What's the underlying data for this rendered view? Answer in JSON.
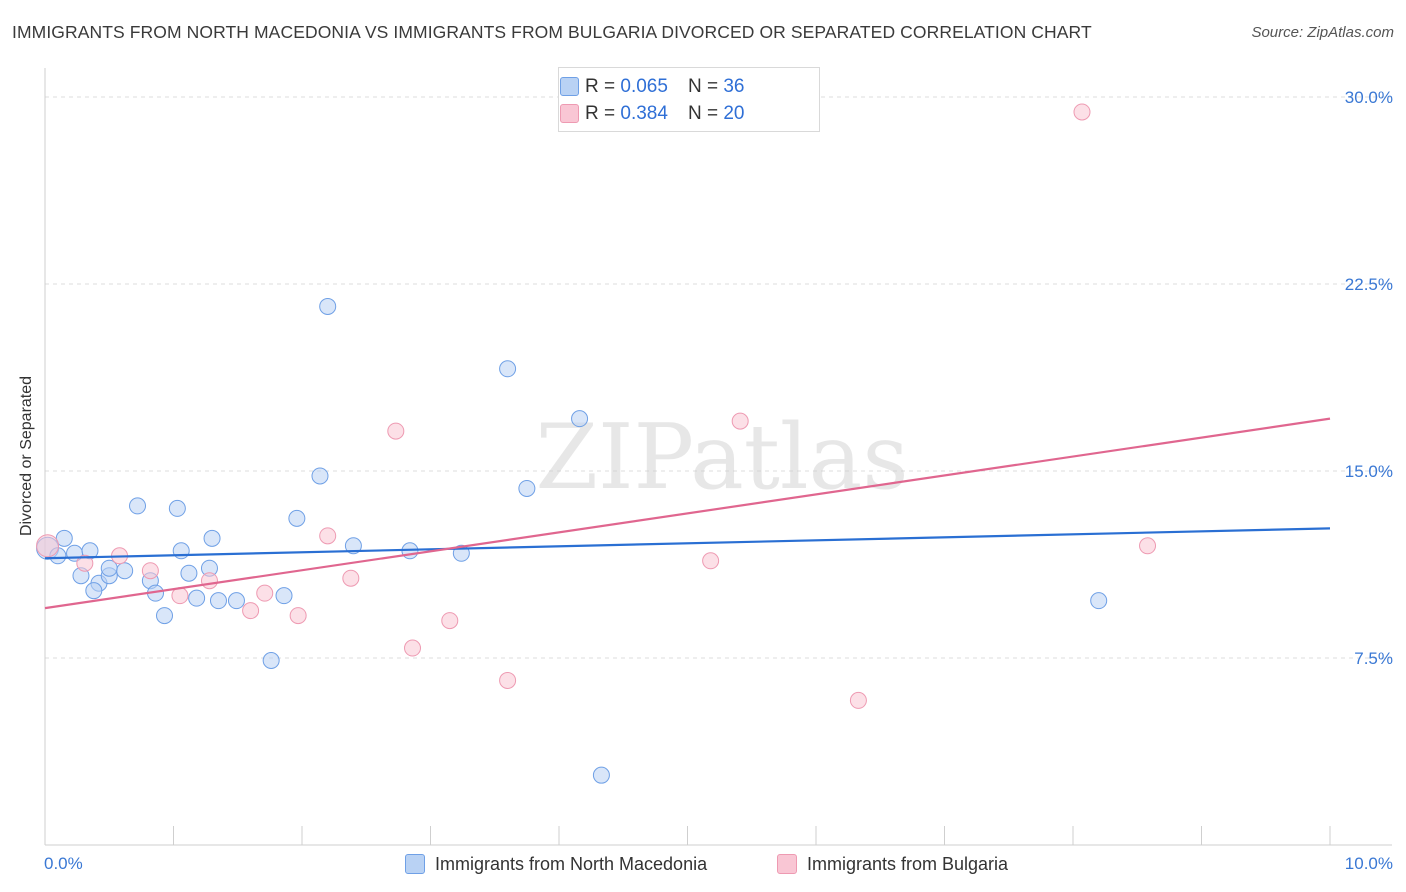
{
  "chart_data": {
    "type": "scatter",
    "title": "IMMIGRANTS FROM NORTH MACEDONIA VS IMMIGRANTS FROM BULGARIA DIVORCED OR SEPARATED CORRELATION CHART",
    "source": "Source: ZipAtlas.com",
    "ylabel": "Divorced or Separated",
    "xlim": [
      0,
      10
    ],
    "ylim": [
      0,
      31
    ],
    "y_ticks": [
      7.5,
      15.0,
      22.5,
      30.0
    ],
    "y_tick_labels": [
      "7.5%",
      "15.0%",
      "22.5%",
      "30.0%"
    ],
    "x_tick_labels": [
      "0.0%",
      "10.0%"
    ],
    "watermark": "ZIPatlas",
    "series": [
      {
        "name": "Immigrants from North Macedonia",
        "color": "#6fa0e6",
        "fill": "#b9d2f4",
        "line_color": "#2a6fd3",
        "R": "0.065",
        "N": "36",
        "trend": [
          [
            0,
            11.5
          ],
          [
            10,
            12.7
          ]
        ],
        "points": [
          [
            0.02,
            11.9
          ],
          [
            0.1,
            11.6
          ],
          [
            0.15,
            12.3
          ],
          [
            0.23,
            11.7
          ],
          [
            0.35,
            11.8
          ],
          [
            0.28,
            10.8
          ],
          [
            0.42,
            10.5
          ],
          [
            0.5,
            10.8
          ],
          [
            0.5,
            11.1
          ],
          [
            0.38,
            10.2
          ],
          [
            0.62,
            11.0
          ],
          [
            0.72,
            13.6
          ],
          [
            0.82,
            10.6
          ],
          [
            0.86,
            10.1
          ],
          [
            0.93,
            9.2
          ],
          [
            1.03,
            13.5
          ],
          [
            1.06,
            11.8
          ],
          [
            1.12,
            10.9
          ],
          [
            1.18,
            9.9
          ],
          [
            1.28,
            11.1
          ],
          [
            1.3,
            12.3
          ],
          [
            1.35,
            9.8
          ],
          [
            1.49,
            9.8
          ],
          [
            1.76,
            7.4
          ],
          [
            1.86,
            10.0
          ],
          [
            1.96,
            13.1
          ],
          [
            2.14,
            14.8
          ],
          [
            2.2,
            21.6
          ],
          [
            2.4,
            12.0
          ],
          [
            2.84,
            11.8
          ],
          [
            3.24,
            11.7
          ],
          [
            3.6,
            19.1
          ],
          [
            3.75,
            14.3
          ],
          [
            4.16,
            17.1
          ],
          [
            4.33,
            2.8
          ],
          [
            8.2,
            9.8
          ]
        ]
      },
      {
        "name": "Immigrants from Bulgaria",
        "color": "#ee9ab2",
        "fill": "#f9c6d4",
        "line_color": "#e0668f",
        "R": "0.384",
        "N": "20",
        "trend": [
          [
            0,
            9.5
          ],
          [
            10,
            17.1
          ]
        ],
        "points": [
          [
            0.02,
            12.0
          ],
          [
            0.31,
            11.3
          ],
          [
            0.58,
            11.6
          ],
          [
            0.82,
            11.0
          ],
          [
            1.05,
            10.0
          ],
          [
            1.28,
            10.6
          ],
          [
            1.6,
            9.4
          ],
          [
            1.71,
            10.1
          ],
          [
            1.97,
            9.2
          ],
          [
            2.2,
            12.4
          ],
          [
            2.38,
            10.7
          ],
          [
            2.73,
            16.6
          ],
          [
            2.86,
            7.9
          ],
          [
            3.15,
            9.0
          ],
          [
            3.6,
            6.6
          ],
          [
            5.18,
            11.4
          ],
          [
            5.41,
            17.0
          ],
          [
            6.33,
            5.8
          ],
          [
            8.07,
            29.4
          ],
          [
            8.58,
            12.0
          ]
        ]
      }
    ]
  },
  "legend": {
    "r_label": "R =",
    "n_label": "N =",
    "rows": [
      {
        "r_value": "0.065",
        "n_value": "36"
      },
      {
        "r_value": "0.384",
        "n_value": "20"
      }
    ]
  },
  "bottom_legend": [
    "Immigrants from North Macedonia",
    "Immigrants from Bulgaria"
  ]
}
